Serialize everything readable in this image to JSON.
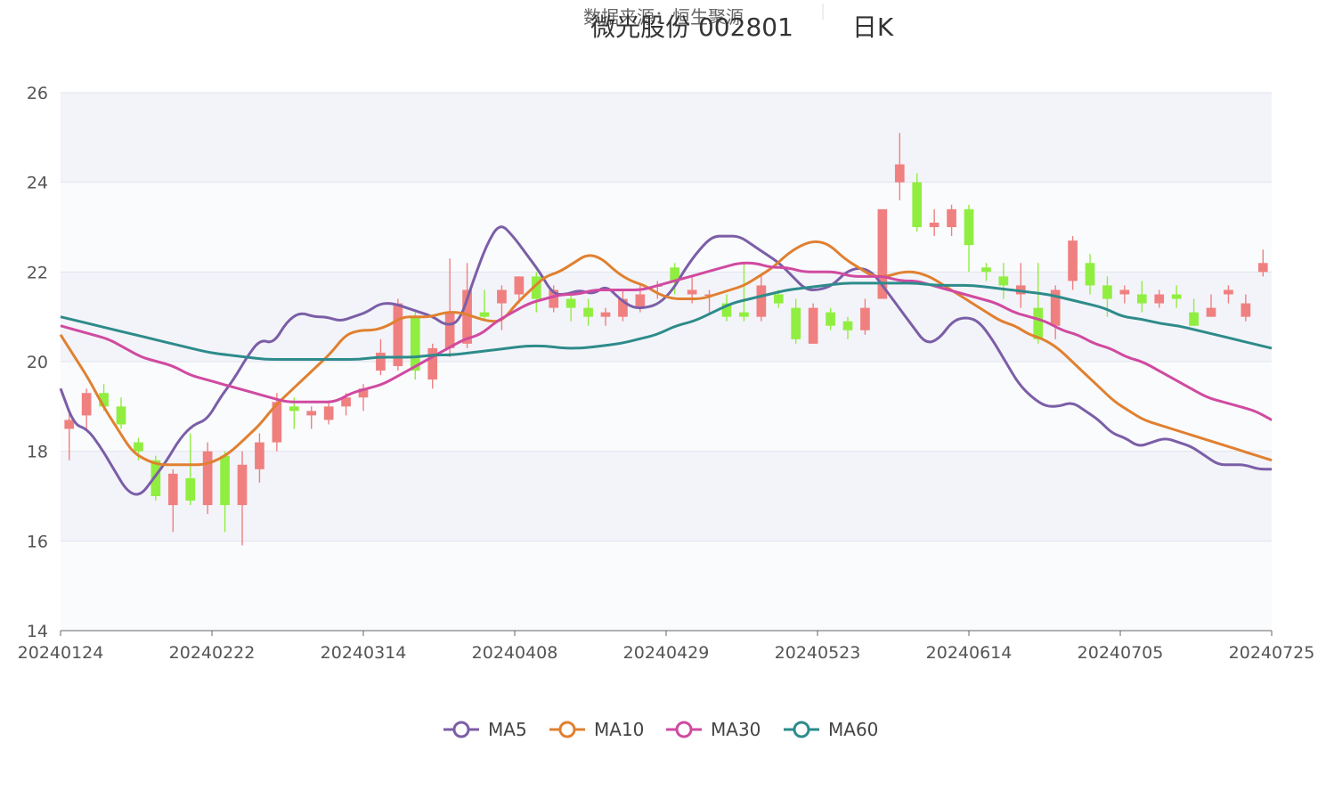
{
  "header": {
    "subtitle": "数据来源：恒生聚源",
    "stock": "微光股份 002801",
    "period": "日K"
  },
  "chart_data": {
    "type": "candlestick",
    "ylim": [
      14,
      26
    ],
    "yticks": [
      14,
      16,
      18,
      20,
      22,
      24,
      26
    ],
    "x_tick_labels": [
      "20240124",
      "20240222",
      "20240314",
      "20240408",
      "20240429",
      "20240523",
      "20240614",
      "20240705",
      "20240725"
    ],
    "grid": true,
    "up_color": "#f08080",
    "down_color": "#90ee40",
    "legend_position": "bottom-center",
    "series": [
      {
        "name": "MA5",
        "color": "#7b5ea7",
        "values": [
          19.4,
          18.6,
          18.5,
          18.1,
          17.6,
          17.1,
          17.0,
          17.4,
          17.8,
          18.3,
          18.6,
          18.7,
          19.2,
          19.6,
          20.1,
          20.5,
          20.4,
          20.9,
          21.1,
          21.0,
          21.0,
          20.9,
          21.0,
          21.1,
          21.3,
          21.3,
          21.2,
          21.1,
          21.0,
          20.8,
          20.9,
          21.8,
          22.6,
          23.1,
          22.8,
          22.4,
          22.0,
          21.5,
          21.5,
          21.6,
          21.5,
          21.7,
          21.4,
          21.2,
          21.2,
          21.3,
          21.6,
          22.1,
          22.5,
          22.8,
          22.8,
          22.8,
          22.6,
          22.4,
          22.2,
          21.9,
          21.6,
          21.6,
          21.7,
          22.0,
          22.1,
          22.0,
          21.6,
          21.2,
          20.8,
          20.4,
          20.5,
          20.9,
          21.0,
          20.9,
          20.5,
          20.0,
          19.5,
          19.2,
          19.0,
          19.0,
          19.1,
          18.9,
          18.7,
          18.4,
          18.3,
          18.1,
          18.2,
          18.3,
          18.2,
          18.1,
          17.9,
          17.7,
          17.7,
          17.7,
          17.6,
          17.6
        ]
      },
      {
        "name": "MA10",
        "color": "#e08030",
        "values": [
          20.6,
          20.1,
          19.6,
          19.0,
          18.5,
          18.0,
          17.8,
          17.7,
          17.7,
          17.7,
          17.7,
          17.8,
          18.0,
          18.3,
          18.6,
          19.0,
          19.3,
          19.6,
          19.9,
          20.2,
          20.6,
          20.7,
          20.7,
          20.8,
          21.0,
          21.0,
          21.0,
          21.1,
          21.1,
          21.0,
          20.9,
          20.9,
          21.3,
          21.6,
          21.9,
          22.0,
          22.2,
          22.4,
          22.3,
          22.0,
          21.8,
          21.7,
          21.5,
          21.4,
          21.4,
          21.4,
          21.5,
          21.6,
          21.7,
          21.9,
          22.1,
          22.4,
          22.6,
          22.7,
          22.6,
          22.3,
          22.1,
          21.9,
          21.9,
          22.0,
          22.0,
          21.9,
          21.7,
          21.5,
          21.3,
          21.1,
          20.9,
          20.8,
          20.6,
          20.5,
          20.3,
          20.0,
          19.7,
          19.4,
          19.1,
          18.9,
          18.7,
          18.6,
          18.5,
          18.4,
          18.3,
          18.2,
          18.1,
          18.0,
          17.9,
          17.8
        ]
      },
      {
        "name": "MA30",
        "color": "#d04aa0",
        "values": [
          20.8,
          20.7,
          20.6,
          20.5,
          20.3,
          20.1,
          20.0,
          19.9,
          19.7,
          19.6,
          19.5,
          19.4,
          19.3,
          19.2,
          19.1,
          19.1,
          19.1,
          19.1,
          19.3,
          19.4,
          19.5,
          19.7,
          19.9,
          20.1,
          20.3,
          20.5,
          20.6,
          20.9,
          21.1,
          21.3,
          21.4,
          21.5,
          21.5,
          21.6,
          21.6,
          21.6,
          21.6,
          21.7,
          21.8,
          21.9,
          22.0,
          22.1,
          22.2,
          22.2,
          22.1,
          22.1,
          22.0,
          22.0,
          22.0,
          21.9,
          21.9,
          21.9,
          21.8,
          21.8,
          21.7,
          21.6,
          21.5,
          21.4,
          21.3,
          21.1,
          21.0,
          20.9,
          20.7,
          20.6,
          20.4,
          20.3,
          20.1,
          20.0,
          19.8,
          19.6,
          19.4,
          19.2,
          19.1,
          19.0,
          18.9,
          18.7
        ]
      },
      {
        "name": "MA60",
        "color": "#2e8b8b",
        "values": [
          21.0,
          20.9,
          20.8,
          20.7,
          20.6,
          20.5,
          20.4,
          20.3,
          20.2,
          20.15,
          20.1,
          20.05,
          20.05,
          20.05,
          20.05,
          20.05,
          20.05,
          20.1,
          20.1,
          20.1,
          20.15,
          20.15,
          20.2,
          20.25,
          20.3,
          20.35,
          20.35,
          20.3,
          20.3,
          20.35,
          20.4,
          20.5,
          20.6,
          20.8,
          20.9,
          21.1,
          21.3,
          21.4,
          21.5,
          21.6,
          21.65,
          21.7,
          21.75,
          21.75,
          21.75,
          21.75,
          21.75,
          21.7,
          21.7,
          21.7,
          21.65,
          21.6,
          21.55,
          21.5,
          21.4,
          21.3,
          21.2,
          21.0,
          20.95,
          20.85,
          20.8,
          20.7,
          20.6,
          20.5,
          20.4,
          20.3
        ]
      }
    ],
    "candles": [
      [
        18.5,
        18.7,
        18.9,
        17.8
      ],
      [
        18.8,
        19.3,
        19.4,
        18.5
      ],
      [
        19.3,
        19.0,
        19.5,
        18.9
      ],
      [
        19.0,
        18.6,
        19.2,
        18.5
      ],
      [
        18.2,
        18.0,
        18.3,
        17.8
      ],
      [
        17.8,
        17.0,
        17.9,
        16.9
      ],
      [
        16.8,
        17.5,
        17.6,
        16.2
      ],
      [
        17.4,
        16.9,
        18.4,
        16.8
      ],
      [
        16.8,
        18.0,
        18.2,
        16.6
      ],
      [
        17.9,
        16.8,
        18.0,
        16.2
      ],
      [
        16.8,
        17.7,
        18.0,
        15.9
      ],
      [
        17.6,
        18.2,
        18.4,
        17.3
      ],
      [
        18.2,
        19.1,
        19.3,
        18.0
      ],
      [
        19.0,
        18.9,
        19.2,
        18.5
      ],
      [
        18.8,
        18.9,
        19.0,
        18.5
      ],
      [
        18.7,
        19.0,
        19.1,
        18.6
      ],
      [
        19.0,
        19.2,
        19.3,
        18.8
      ],
      [
        19.2,
        19.4,
        19.5,
        18.9
      ],
      [
        19.8,
        20.2,
        20.5,
        19.7
      ],
      [
        19.9,
        21.3,
        21.4,
        19.8
      ],
      [
        21.0,
        19.8,
        21.1,
        19.6
      ],
      [
        19.6,
        20.3,
        20.4,
        19.4
      ],
      [
        20.3,
        21.1,
        22.3,
        20.1
      ],
      [
        20.4,
        21.6,
        22.2,
        20.3
      ],
      [
        21.1,
        21.0,
        21.6,
        20.9
      ],
      [
        21.3,
        21.6,
        21.7,
        20.7
      ],
      [
        21.5,
        21.9,
        21.9,
        21.3
      ],
      [
        21.9,
        21.4,
        22.0,
        21.1
      ],
      [
        21.2,
        21.6,
        21.7,
        21.1
      ],
      [
        21.4,
        21.2,
        21.5,
        20.9
      ],
      [
        21.2,
        21.0,
        21.4,
        20.8
      ],
      [
        21.0,
        21.1,
        21.2,
        20.8
      ],
      [
        21.0,
        21.4,
        21.6,
        20.9
      ],
      [
        21.2,
        21.5,
        21.7,
        21.1
      ],
      [
        21.7,
        21.7,
        21.8,
        21.4
      ],
      [
        22.1,
        21.8,
        22.2,
        21.5
      ],
      [
        21.5,
        21.6,
        21.9,
        21.3
      ],
      [
        21.5,
        21.5,
        21.6,
        21.1
      ],
      [
        21.3,
        21.0,
        21.5,
        20.9
      ],
      [
        21.1,
        21.0,
        22.2,
        20.9
      ],
      [
        21.0,
        21.7,
        21.9,
        20.9
      ],
      [
        21.5,
        21.3,
        21.6,
        21.2
      ],
      [
        21.2,
        20.5,
        21.4,
        20.4
      ],
      [
        20.4,
        21.2,
        21.3,
        20.4
      ],
      [
        21.1,
        20.8,
        21.2,
        20.7
      ],
      [
        20.9,
        20.7,
        21.0,
        20.5
      ],
      [
        20.7,
        21.2,
        21.4,
        20.6
      ],
      [
        21.4,
        23.4,
        23.4,
        21.4
      ],
      [
        24.0,
        24.4,
        25.1,
        23.6
      ],
      [
        24.0,
        23.0,
        24.2,
        22.9
      ],
      [
        23.0,
        23.1,
        23.4,
        22.8
      ],
      [
        23.0,
        23.4,
        23.5,
        22.8
      ],
      [
        23.4,
        22.6,
        23.5,
        22.0
      ],
      [
        22.1,
        22.0,
        22.2,
        21.8
      ],
      [
        21.9,
        21.7,
        22.2,
        21.4
      ],
      [
        21.5,
        21.7,
        22.2,
        21.2
      ],
      [
        21.2,
        20.5,
        22.2,
        20.4
      ],
      [
        20.8,
        21.6,
        21.7,
        20.5
      ],
      [
        21.8,
        22.7,
        22.8,
        21.6
      ],
      [
        22.2,
        21.7,
        22.4,
        21.5
      ],
      [
        21.7,
        21.4,
        21.9,
        21.0
      ],
      [
        21.5,
        21.6,
        21.7,
        21.3
      ],
      [
        21.5,
        21.3,
        21.8,
        21.1
      ],
      [
        21.3,
        21.5,
        21.6,
        21.2
      ],
      [
        21.5,
        21.4,
        21.7,
        21.2
      ],
      [
        21.1,
        20.8,
        21.4,
        20.8
      ],
      [
        21.0,
        21.2,
        21.5,
        21.0
      ],
      [
        21.5,
        21.6,
        21.7,
        21.3
      ],
      [
        21.0,
        21.3,
        21.5,
        20.9
      ],
      [
        22.0,
        22.2,
        22.5,
        21.9
      ]
    ],
    "legend": [
      "MA5",
      "MA10",
      "MA30",
      "MA60"
    ]
  }
}
